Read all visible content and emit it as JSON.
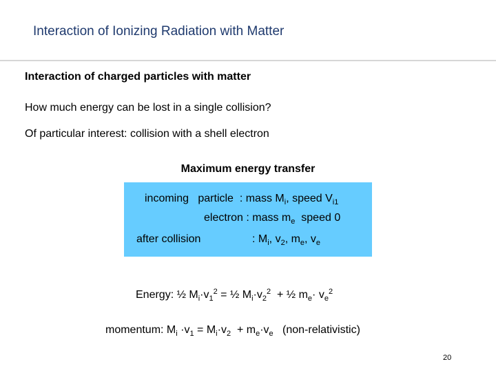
{
  "header": {
    "title": "Interaction of Ionizing Radiation with Matter"
  },
  "body": {
    "heading": "Interaction of charged particles with matter",
    "question": "How much energy can be lost in a single collision?",
    "interest": "Of particular interest: collision with a shell electron",
    "box_title": "Maximum energy transfer",
    "box_lines": [
      [
        "incoming   particle  : mass M",
        {
          "sub": "i"
        },
        ", speed V",
        {
          "sub": "i1"
        }
      ],
      [
        "electron : mass m",
        {
          "sub": "e"
        },
        "  speed 0"
      ],
      [
        "after collision"
      ],
      [
        ": M",
        {
          "sub": "i"
        },
        ", v",
        {
          "sub": "2"
        },
        ", m",
        {
          "sub": "e"
        },
        ", v",
        {
          "sub": "e"
        }
      ]
    ],
    "energy": [
      "Energy: ½ M",
      {
        "sub": "i"
      },
      "·v",
      {
        "sub": "1"
      },
      {
        "sup": "2"
      },
      " = ½ M",
      {
        "sub": "i"
      },
      "·v",
      {
        "sub": "2"
      },
      {
        "sup": "2"
      },
      "  + ½ m",
      {
        "sub": "e"
      },
      "· v",
      {
        "sub": "e"
      },
      {
        "sup": "2"
      }
    ],
    "momentum": [
      "momentum: M",
      {
        "sub": "i"
      },
      " ·v",
      {
        "sub": "1"
      },
      " = M",
      {
        "sub": "i"
      },
      "·v",
      {
        "sub": "2"
      },
      "  + m",
      {
        "sub": "e"
      },
      "·v",
      {
        "sub": "e"
      },
      "   (non-relativistic)"
    ]
  },
  "footer": {
    "page_number": "20"
  }
}
